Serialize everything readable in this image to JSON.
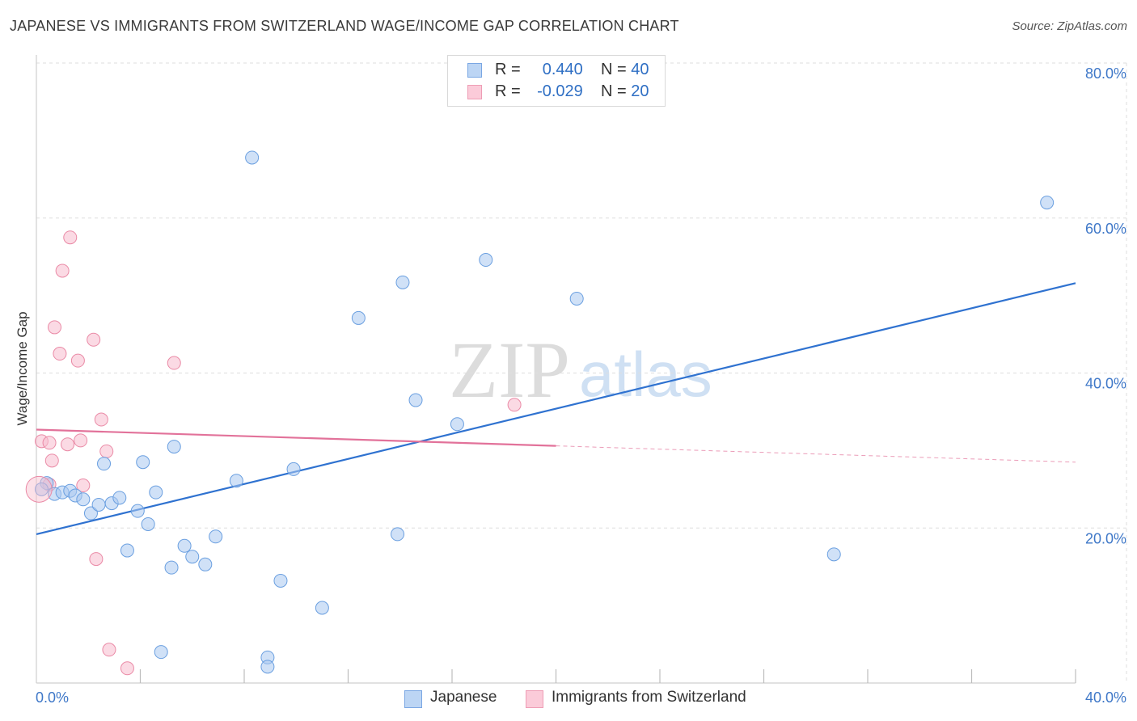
{
  "title": "JAPANESE VS IMMIGRANTS FROM SWITZERLAND WAGE/INCOME GAP CORRELATION CHART",
  "source": "Source: ZipAtlas.com",
  "watermark": {
    "zip": "ZIP",
    "atlas": "atlas"
  },
  "legend_top": [
    {
      "r_label": "R =",
      "r_value": "0.440",
      "n_label": "N =",
      "n_value": "40"
    },
    {
      "r_label": "R =",
      "r_value": "-0.029",
      "n_label": "N =",
      "n_value": "20"
    }
  ],
  "colors": {
    "japanese_fill": "#a9c8f0",
    "japanese_stroke": "#6a9fe0",
    "japanese_line": "#2f72d0",
    "swiss_fill": "#f8bccd",
    "swiss_stroke": "#ea8aa6",
    "swiss_line": "#e2729a",
    "grid": "#dedede",
    "tick_label": "#3f78c8"
  },
  "chart_data": {
    "type": "scatter",
    "ylabel": "Wage/Income Gap",
    "xlim": [
      0,
      40
    ],
    "ylim": [
      0,
      80
    ],
    "x_tick_labels": [
      {
        "value": 0,
        "label": "0.0%"
      },
      {
        "value": 40,
        "label": "40.0%"
      }
    ],
    "x_minor_ticks": [
      4,
      8,
      12,
      16,
      20,
      24,
      28,
      32,
      36,
      40
    ],
    "y_ticks": [
      {
        "value": 20,
        "label": "20.0%"
      },
      {
        "value": 40,
        "label": "40.0%"
      },
      {
        "value": 60,
        "label": "60.0%"
      },
      {
        "value": 80,
        "label": "80.0%"
      }
    ],
    "series": [
      {
        "name": "Japanese",
        "r": 0.44,
        "n": 40,
        "points": [
          [
            0.4,
            25.8
          ],
          [
            0.7,
            24.4
          ],
          [
            1.0,
            24.6
          ],
          [
            1.3,
            24.8
          ],
          [
            1.5,
            24.2
          ],
          [
            1.8,
            23.7
          ],
          [
            2.1,
            21.9
          ],
          [
            2.4,
            23.0
          ],
          [
            2.6,
            28.3
          ],
          [
            2.9,
            23.2
          ],
          [
            3.2,
            23.9
          ],
          [
            3.5,
            17.1
          ],
          [
            3.9,
            22.2
          ],
          [
            4.1,
            28.5
          ],
          [
            4.3,
            20.5
          ],
          [
            4.6,
            24.6
          ],
          [
            4.8,
            4.0
          ],
          [
            5.2,
            14.9
          ],
          [
            5.3,
            30.5
          ],
          [
            5.7,
            17.7
          ],
          [
            6.0,
            16.3
          ],
          [
            6.5,
            15.3
          ],
          [
            6.9,
            18.9
          ],
          [
            7.7,
            26.1
          ],
          [
            8.3,
            67.8
          ],
          [
            8.9,
            3.3
          ],
          [
            8.9,
            2.1
          ],
          [
            9.4,
            13.2
          ],
          [
            9.9,
            27.6
          ],
          [
            11.0,
            9.7
          ],
          [
            12.4,
            47.1
          ],
          [
            13.9,
            19.2
          ],
          [
            14.1,
            51.7
          ],
          [
            14.6,
            36.5
          ],
          [
            16.2,
            33.4
          ],
          [
            17.3,
            54.6
          ],
          [
            20.8,
            49.6
          ],
          [
            30.7,
            16.6
          ],
          [
            38.9,
            62.0
          ],
          [
            0.2,
            25.0
          ]
        ],
        "trend": {
          "x": [
            0,
            40
          ],
          "y": [
            19.2,
            51.6
          ],
          "style": "solid"
        }
      },
      {
        "name": "Immigrants from Switzerland",
        "r": -0.029,
        "n": 20,
        "points": [
          [
            0.2,
            31.2
          ],
          [
            0.5,
            31.0
          ],
          [
            0.5,
            25.6
          ],
          [
            0.6,
            28.7
          ],
          [
            0.7,
            45.9
          ],
          [
            0.9,
            42.5
          ],
          [
            1.0,
            53.2
          ],
          [
            1.2,
            30.8
          ],
          [
            1.3,
            57.5
          ],
          [
            1.6,
            41.6
          ],
          [
            1.7,
            31.3
          ],
          [
            1.8,
            25.5
          ],
          [
            2.2,
            44.3
          ],
          [
            2.3,
            16.0
          ],
          [
            2.5,
            34.0
          ],
          [
            2.7,
            29.9
          ],
          [
            2.8,
            4.3
          ],
          [
            3.5,
            1.9
          ],
          [
            5.3,
            41.3
          ],
          [
            18.4,
            35.9
          ]
        ],
        "trend": {
          "x": [
            0,
            20
          ],
          "y": [
            32.7,
            30.6
          ],
          "dashed_extension": {
            "x": [
              20,
              40
            ],
            "y": [
              30.6,
              28.5
            ]
          }
        }
      }
    ]
  }
}
